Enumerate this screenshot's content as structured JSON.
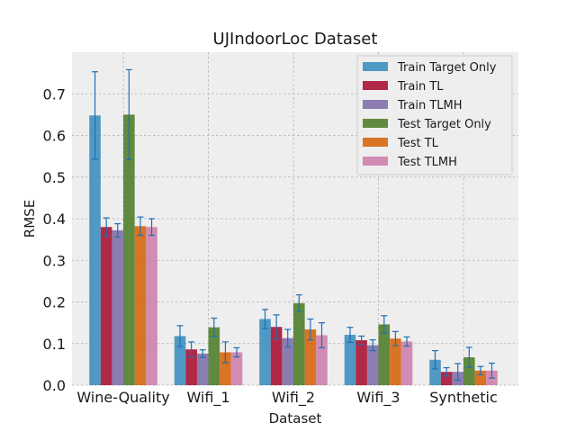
{
  "chart_data": {
    "type": "bar",
    "title": "UJIndoorLoc Dataset",
    "xlabel": "Dataset",
    "ylabel": "RMSE",
    "ylim": [
      0,
      0.8
    ],
    "yticks": [
      "0.0",
      "0.1",
      "0.2",
      "0.3",
      "0.4",
      "0.5",
      "0.6",
      "0.7"
    ],
    "grid": true,
    "legend_position": "top-right",
    "categories": [
      "Wine-Quality",
      "Wifi_1",
      "Wifi_2",
      "Wifi_3",
      "Synthetic"
    ],
    "series": [
      {
        "name": "Train Target Only",
        "color": "#348abd",
        "values": [
          0.648,
          0.118,
          0.159,
          0.121,
          0.061
        ],
        "errors": [
          0.105,
          0.025,
          0.023,
          0.018,
          0.022
        ]
      },
      {
        "name": "Train TL",
        "color": "#a60628",
        "values": [
          0.38,
          0.086,
          0.14,
          0.108,
          0.032
        ],
        "errors": [
          0.022,
          0.018,
          0.029,
          0.01,
          0.01
        ]
      },
      {
        "name": "Train TLMH",
        "color": "#7a68a6",
        "values": [
          0.372,
          0.076,
          0.113,
          0.096,
          0.032
        ],
        "errors": [
          0.016,
          0.009,
          0.021,
          0.013,
          0.02
        ]
      },
      {
        "name": "Test Target Only",
        "color": "#467821",
        "values": [
          0.65,
          0.139,
          0.197,
          0.146,
          0.067
        ],
        "errors": [
          0.108,
          0.022,
          0.02,
          0.021,
          0.024
        ]
      },
      {
        "name": "Test TL",
        "color": "#d55e00",
        "values": [
          0.382,
          0.079,
          0.134,
          0.112,
          0.035
        ],
        "errors": [
          0.022,
          0.025,
          0.025,
          0.017,
          0.01
        ]
      },
      {
        "name": "Test TLMH",
        "color": "#cc79a7",
        "values": [
          0.38,
          0.079,
          0.12,
          0.105,
          0.035
        ],
        "errors": [
          0.02,
          0.011,
          0.03,
          0.011,
          0.018
        ]
      }
    ]
  }
}
